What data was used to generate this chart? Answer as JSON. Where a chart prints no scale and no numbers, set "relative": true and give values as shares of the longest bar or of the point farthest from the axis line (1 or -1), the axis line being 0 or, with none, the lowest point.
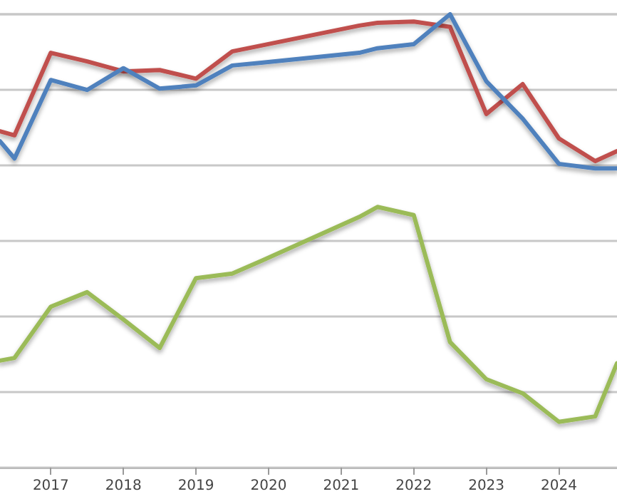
{
  "chart_data": {
    "type": "line",
    "relative": true,
    "grid": "y",
    "marker": "none",
    "line_style": "solid",
    "x": [
      2016.3,
      2016.5,
      2017,
      2017.5,
      2018,
      2018.5,
      2019,
      2019.5,
      2019.9,
      2021.25,
      2021.5,
      2022,
      2022.5,
      2023,
      2023.5,
      2024,
      2024.5,
      2024.8
    ],
    "xlim": [
      2016.3,
      2024.8
    ],
    "xticks": [
      2017,
      2018,
      2019,
      2020,
      2021,
      2022,
      2023,
      2024
    ],
    "series": [
      {
        "color": "#c0504d",
        "values": [
          0.742,
          0.733,
          0.915,
          0.896,
          0.874,
          0.877,
          0.858,
          0.918,
          0.931,
          0.975,
          0.981,
          0.984,
          0.972,
          0.78,
          0.846,
          0.726,
          0.676,
          0.698
        ]
      },
      {
        "color": "#4f81bd",
        "values": [
          0.72,
          0.682,
          0.855,
          0.833,
          0.881,
          0.836,
          0.843,
          0.887,
          0.893,
          0.915,
          0.925,
          0.934,
          1,
          0.852,
          0.77,
          0.67,
          0.66,
          0.66
        ]
      },
      {
        "color": "#9bbb59",
        "values": [
          0.236,
          0.242,
          0.355,
          0.387,
          0.327,
          0.264,
          0.418,
          0.428,
          0.456,
          0.553,
          0.575,
          0.557,
          0.277,
          0.195,
          0.164,
          0.101,
          0.113,
          0.23
        ]
      }
    ]
  }
}
